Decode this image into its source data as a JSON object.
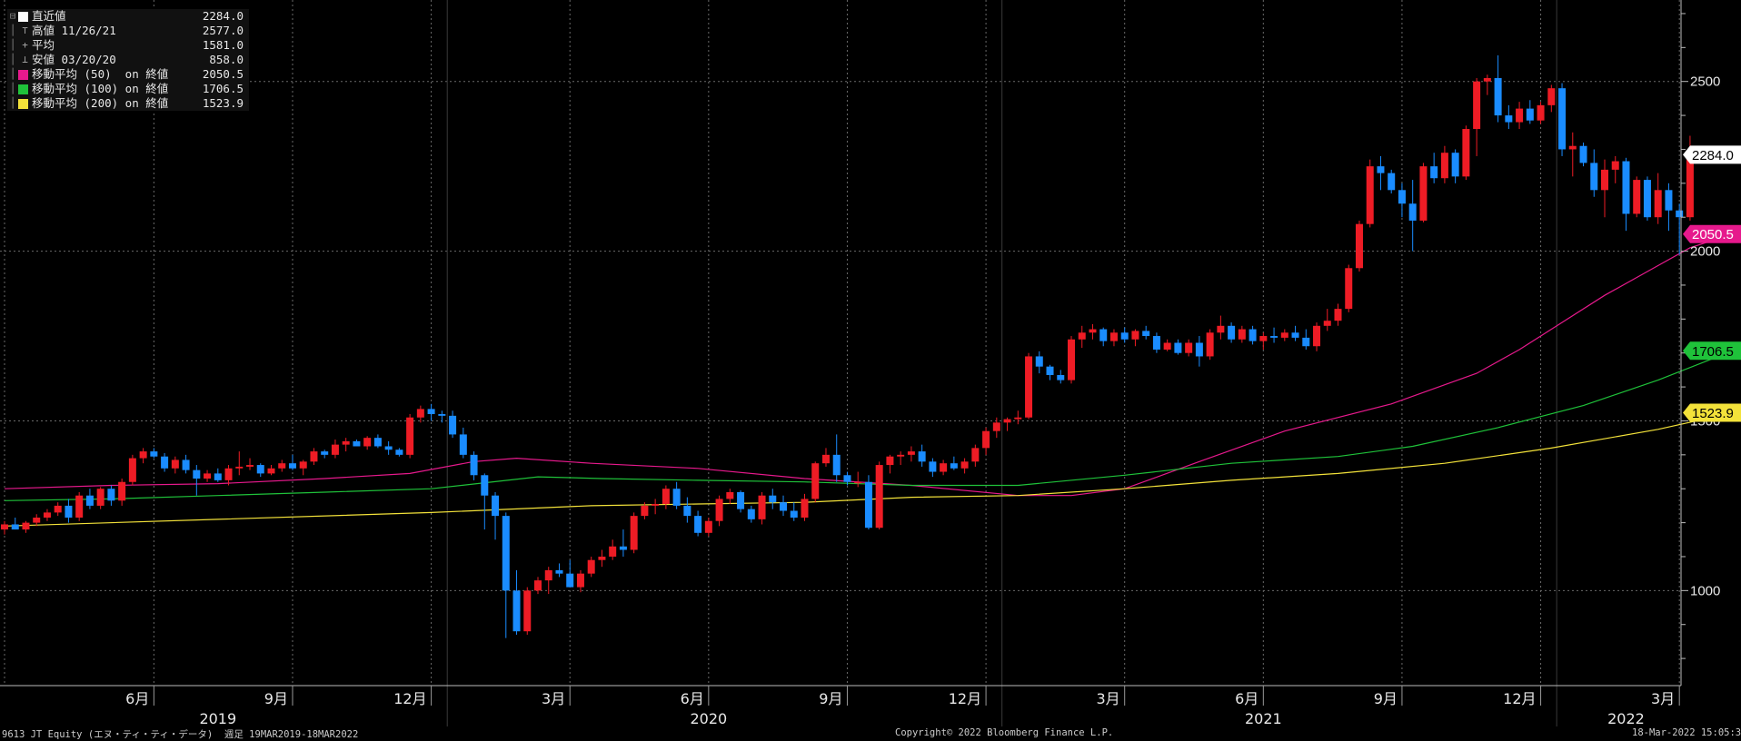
{
  "legend": [
    {
      "label": "直近値",
      "value": "2284.0",
      "color": "#ffffff",
      "icon": "square-swatch"
    },
    {
      "label": "高値 11/26/21",
      "value": "2577.0",
      "icon": "high-marker"
    },
    {
      "label": "平均",
      "value": "1581.0",
      "icon": "average-marker"
    },
    {
      "label": "安値 03/20/20",
      "value": "858.0",
      "icon": "low-marker"
    },
    {
      "label": "移動平均 (50)  on 終値",
      "value": "2050.5",
      "color": "#e6198c",
      "icon": "square-swatch"
    },
    {
      "label": "移動平均 (100) on 終値",
      "value": "1706.5",
      "color": "#1fc23a",
      "icon": "square-swatch"
    },
    {
      "label": "移動平均 (200) on 終値",
      "value": "1523.9",
      "color": "#f3e23a",
      "icon": "square-swatch"
    }
  ],
  "footer": {
    "left": "9613 JT Equity (エヌ・ティ・ティ・データ)  週足 19MAR2019-18MAR2022",
    "center": "Copyright© 2022 Bloomberg Finance L.P.",
    "right": "18-Mar-2022 15:05:34"
  },
  "chart_data": {
    "type": "candlestick",
    "y_axis": {
      "range": [
        720,
        2740
      ],
      "ticks": [
        1000,
        1500,
        2000,
        2500
      ],
      "tick_labels": [
        "1000",
        "1500",
        "2000",
        "2500"
      ],
      "position": "right"
    },
    "x_axis": {
      "month_ticks": [
        {
          "label": "6月",
          "week": 14
        },
        {
          "label": "9月",
          "week": 27
        },
        {
          "label": "12月",
          "week": 40
        },
        {
          "label": "3月",
          "week": 53
        },
        {
          "label": "6月",
          "week": 66
        },
        {
          "label": "9月",
          "week": 79
        },
        {
          "label": "12月",
          "week": 92
        },
        {
          "label": "3月",
          "week": 105
        },
        {
          "label": "6月",
          "week": 118
        },
        {
          "label": "9月",
          "week": 131
        },
        {
          "label": "12月",
          "week": 144
        },
        {
          "label": "3月",
          "week": 157
        }
      ],
      "year_labels": [
        {
          "label": "2019",
          "week": 20
        },
        {
          "label": "2020",
          "week": 66
        },
        {
          "label": "2021",
          "week": 118
        },
        {
          "label": "2022",
          "week": 152
        }
      ],
      "year_dividers": [
        41.5,
        93.5,
        145.5
      ]
    },
    "grid": true,
    "candle_colors": {
      "up": "#ee1c25",
      "down": "#1a8cff"
    },
    "last_value_labels": [
      {
        "value": 2284.0,
        "text": "2284.0",
        "bg": "#ffffff",
        "fg": "#000000"
      },
      {
        "value": 2050.5,
        "text": "2050.5",
        "bg": "#e6198c",
        "fg": "#ffffff"
      },
      {
        "value": 1706.5,
        "text": "1706.5",
        "bg": "#1fc23a",
        "fg": "#000000"
      },
      {
        "value": 1523.9,
        "text": "1523.9",
        "bg": "#f3e23a",
        "fg": "#000000"
      }
    ],
    "candles": [
      [
        1180,
        1205,
        1165,
        1195
      ],
      [
        1195,
        1215,
        1180,
        1180
      ],
      [
        1180,
        1205,
        1170,
        1200
      ],
      [
        1200,
        1225,
        1190,
        1215
      ],
      [
        1215,
        1240,
        1205,
        1230
      ],
      [
        1230,
        1260,
        1220,
        1250
      ],
      [
        1250,
        1270,
        1200,
        1215
      ],
      [
        1215,
        1290,
        1205,
        1280
      ],
      [
        1280,
        1300,
        1240,
        1250
      ],
      [
        1250,
        1305,
        1240,
        1300
      ],
      [
        1300,
        1310,
        1250,
        1265
      ],
      [
        1265,
        1330,
        1250,
        1320
      ],
      [
        1320,
        1400,
        1310,
        1390
      ],
      [
        1390,
        1420,
        1375,
        1410
      ],
      [
        1410,
        1420,
        1390,
        1395
      ],
      [
        1395,
        1405,
        1350,
        1360
      ],
      [
        1360,
        1395,
        1345,
        1385
      ],
      [
        1385,
        1400,
        1345,
        1355
      ],
      [
        1355,
        1370,
        1280,
        1330
      ],
      [
        1330,
        1355,
        1320,
        1345
      ],
      [
        1345,
        1360,
        1320,
        1325
      ],
      [
        1325,
        1370,
        1310,
        1360
      ],
      [
        1360,
        1410,
        1340,
        1365
      ],
      [
        1365,
        1390,
        1355,
        1370
      ],
      [
        1370,
        1375,
        1335,
        1345
      ],
      [
        1345,
        1370,
        1340,
        1360
      ],
      [
        1360,
        1385,
        1350,
        1375
      ],
      [
        1375,
        1400,
        1355,
        1360
      ],
      [
        1360,
        1385,
        1340,
        1380
      ],
      [
        1380,
        1420,
        1370,
        1410
      ],
      [
        1410,
        1415,
        1390,
        1400
      ],
      [
        1400,
        1445,
        1390,
        1430
      ],
      [
        1430,
        1450,
        1410,
        1440
      ],
      [
        1440,
        1445,
        1425,
        1425
      ],
      [
        1425,
        1455,
        1415,
        1450
      ],
      [
        1450,
        1460,
        1420,
        1425
      ],
      [
        1425,
        1440,
        1400,
        1415
      ],
      [
        1415,
        1420,
        1395,
        1400
      ],
      [
        1400,
        1520,
        1390,
        1510
      ],
      [
        1510,
        1545,
        1495,
        1535
      ],
      [
        1535,
        1550,
        1500,
        1520
      ],
      [
        1520,
        1530,
        1495,
        1515
      ],
      [
        1515,
        1530,
        1450,
        1460
      ],
      [
        1460,
        1480,
        1390,
        1400
      ],
      [
        1400,
        1410,
        1325,
        1340
      ],
      [
        1340,
        1345,
        1180,
        1280
      ],
      [
        1280,
        1290,
        1150,
        1220
      ],
      [
        1220,
        1230,
        860,
        1000
      ],
      [
        1000,
        1060,
        870,
        880
      ],
      [
        880,
        1010,
        870,
        1000
      ],
      [
        1000,
        1040,
        990,
        1030
      ],
      [
        1030,
        1070,
        990,
        1060
      ],
      [
        1060,
        1080,
        1040,
        1050
      ],
      [
        1050,
        1090,
        1010,
        1010
      ],
      [
        1010,
        1060,
        995,
        1050
      ],
      [
        1050,
        1100,
        1040,
        1090
      ],
      [
        1090,
        1120,
        1070,
        1100
      ],
      [
        1100,
        1150,
        1090,
        1130
      ],
      [
        1130,
        1180,
        1100,
        1120
      ],
      [
        1120,
        1230,
        1110,
        1220
      ],
      [
        1220,
        1260,
        1210,
        1250
      ],
      [
        1250,
        1270,
        1225,
        1255
      ],
      [
        1255,
        1310,
        1240,
        1300
      ],
      [
        1300,
        1320,
        1240,
        1250
      ],
      [
        1250,
        1275,
        1200,
        1220
      ],
      [
        1220,
        1235,
        1160,
        1170
      ],
      [
        1170,
        1215,
        1160,
        1205
      ],
      [
        1205,
        1280,
        1190,
        1270
      ],
      [
        1270,
        1300,
        1255,
        1290
      ],
      [
        1290,
        1295,
        1230,
        1240
      ],
      [
        1240,
        1250,
        1200,
        1210
      ],
      [
        1210,
        1290,
        1195,
        1280
      ],
      [
        1280,
        1300,
        1240,
        1260
      ],
      [
        1260,
        1280,
        1220,
        1235
      ],
      [
        1235,
        1260,
        1205,
        1215
      ],
      [
        1215,
        1285,
        1205,
        1270
      ],
      [
        1270,
        1380,
        1260,
        1375
      ],
      [
        1375,
        1420,
        1365,
        1400
      ],
      [
        1400,
        1460,
        1320,
        1340
      ],
      [
        1340,
        1350,
        1310,
        1320
      ],
      [
        1320,
        1350,
        1305,
        1320
      ],
      [
        1320,
        1340,
        1180,
        1185
      ],
      [
        1185,
        1380,
        1180,
        1370
      ],
      [
        1370,
        1400,
        1345,
        1395
      ],
      [
        1395,
        1410,
        1370,
        1400
      ],
      [
        1400,
        1425,
        1380,
        1410
      ],
      [
        1410,
        1430,
        1365,
        1380
      ],
      [
        1380,
        1390,
        1335,
        1350
      ],
      [
        1350,
        1385,
        1340,
        1375
      ],
      [
        1375,
        1395,
        1355,
        1360
      ],
      [
        1360,
        1390,
        1345,
        1380
      ],
      [
        1380,
        1430,
        1365,
        1420
      ],
      [
        1420,
        1480,
        1400,
        1470
      ],
      [
        1470,
        1510,
        1450,
        1495
      ],
      [
        1495,
        1510,
        1470,
        1505
      ],
      [
        1505,
        1530,
        1490,
        1510
      ],
      [
        1510,
        1700,
        1505,
        1690
      ],
      [
        1690,
        1705,
        1640,
        1660
      ],
      [
        1660,
        1665,
        1620,
        1635
      ],
      [
        1635,
        1650,
        1610,
        1620
      ],
      [
        1620,
        1750,
        1610,
        1740
      ],
      [
        1740,
        1780,
        1715,
        1760
      ],
      [
        1760,
        1785,
        1740,
        1770
      ],
      [
        1770,
        1775,
        1720,
        1735
      ],
      [
        1735,
        1770,
        1720,
        1760
      ],
      [
        1760,
        1775,
        1730,
        1740
      ],
      [
        1740,
        1770,
        1720,
        1765
      ],
      [
        1765,
        1780,
        1740,
        1750
      ],
      [
        1750,
        1760,
        1700,
        1710
      ],
      [
        1710,
        1740,
        1705,
        1730
      ],
      [
        1730,
        1740,
        1695,
        1700
      ],
      [
        1700,
        1740,
        1690,
        1730
      ],
      [
        1730,
        1750,
        1660,
        1690
      ],
      [
        1690,
        1770,
        1680,
        1760
      ],
      [
        1760,
        1810,
        1740,
        1780
      ],
      [
        1780,
        1790,
        1730,
        1740
      ],
      [
        1740,
        1780,
        1730,
        1770
      ],
      [
        1770,
        1780,
        1725,
        1735
      ],
      [
        1735,
        1760,
        1710,
        1750
      ],
      [
        1750,
        1775,
        1730,
        1745
      ],
      [
        1745,
        1770,
        1735,
        1760
      ],
      [
        1760,
        1780,
        1735,
        1745
      ],
      [
        1745,
        1770,
        1710,
        1720
      ],
      [
        1720,
        1790,
        1705,
        1780
      ],
      [
        1780,
        1830,
        1765,
        1795
      ],
      [
        1795,
        1845,
        1780,
        1830
      ],
      [
        1830,
        1960,
        1820,
        1950
      ],
      [
        1950,
        2090,
        1940,
        2080
      ],
      [
        2080,
        2270,
        2070,
        2250
      ],
      [
        2250,
        2280,
        2180,
        2230
      ],
      [
        2230,
        2240,
        2170,
        2180
      ],
      [
        2180,
        2200,
        2100,
        2140
      ],
      [
        2140,
        2210,
        2000,
        2090
      ],
      [
        2090,
        2260,
        2085,
        2250
      ],
      [
        2250,
        2290,
        2200,
        2215
      ],
      [
        2215,
        2310,
        2200,
        2290
      ],
      [
        2290,
        2300,
        2200,
        2220
      ],
      [
        2220,
        2370,
        2210,
        2360
      ],
      [
        2360,
        2510,
        2280,
        2500
      ],
      [
        2500,
        2520,
        2460,
        2510
      ],
      [
        2510,
        2577,
        2380,
        2400
      ],
      [
        2400,
        2430,
        2360,
        2380
      ],
      [
        2380,
        2440,
        2360,
        2420
      ],
      [
        2420,
        2445,
        2375,
        2385
      ],
      [
        2385,
        2440,
        2375,
        2430
      ],
      [
        2430,
        2490,
        2410,
        2480
      ],
      [
        2480,
        2495,
        2280,
        2300
      ],
      [
        2300,
        2350,
        2220,
        2310
      ],
      [
        2310,
        2320,
        2250,
        2260
      ],
      [
        2260,
        2300,
        2160,
        2180
      ],
      [
        2180,
        2270,
        2100,
        2240
      ],
      [
        2240,
        2280,
        2200,
        2265
      ],
      [
        2265,
        2275,
        2060,
        2110
      ],
      [
        2110,
        2220,
        2100,
        2210
      ],
      [
        2210,
        2220,
        2090,
        2100
      ],
      [
        2100,
        2230,
        2080,
        2180
      ],
      [
        2180,
        2200,
        2060,
        2120
      ],
      [
        2120,
        2140,
        1990,
        2100
      ],
      [
        2100,
        2340,
        2090,
        2284
      ]
    ],
    "moving_averages": [
      {
        "name": "移動平均 (50) on 終値",
        "color": "#e6198c",
        "points": [
          [
            0,
            1300
          ],
          [
            10,
            1310
          ],
          [
            20,
            1315
          ],
          [
            30,
            1330
          ],
          [
            38,
            1345
          ],
          [
            44,
            1380
          ],
          [
            48,
            1390
          ],
          [
            55,
            1375
          ],
          [
            65,
            1360
          ],
          [
            75,
            1330
          ],
          [
            85,
            1310
          ],
          [
            95,
            1280
          ],
          [
            100,
            1280
          ],
          [
            105,
            1300
          ],
          [
            112,
            1380
          ],
          [
            120,
            1470
          ],
          [
            130,
            1550
          ],
          [
            138,
            1640
          ],
          [
            142,
            1710
          ],
          [
            146,
            1790
          ],
          [
            150,
            1870
          ],
          [
            154,
            1940
          ],
          [
            158,
            2010
          ],
          [
            162,
            2050.5
          ]
        ]
      },
      {
        "name": "移動平均 (100) on 終値",
        "color": "#1fc23a",
        "points": [
          [
            0,
            1265
          ],
          [
            10,
            1270
          ],
          [
            20,
            1280
          ],
          [
            30,
            1290
          ],
          [
            40,
            1300
          ],
          [
            50,
            1335
          ],
          [
            56,
            1330
          ],
          [
            65,
            1325
          ],
          [
            75,
            1320
          ],
          [
            85,
            1310
          ],
          [
            95,
            1310
          ],
          [
            105,
            1340
          ],
          [
            115,
            1375
          ],
          [
            125,
            1395
          ],
          [
            132,
            1425
          ],
          [
            140,
            1480
          ],
          [
            148,
            1545
          ],
          [
            155,
            1620
          ],
          [
            162,
            1706.5
          ]
        ]
      },
      {
        "name": "移動平均 (200) on 終値",
        "color": "#f3e23a",
        "points": [
          [
            0,
            1190
          ],
          [
            20,
            1210
          ],
          [
            40,
            1230
          ],
          [
            55,
            1250
          ],
          [
            65,
            1255
          ],
          [
            75,
            1260
          ],
          [
            85,
            1275
          ],
          [
            95,
            1280
          ],
          [
            105,
            1300
          ],
          [
            115,
            1325
          ],
          [
            125,
            1345
          ],
          [
            135,
            1375
          ],
          [
            145,
            1420
          ],
          [
            155,
            1475
          ],
          [
            162,
            1523.9
          ]
        ]
      }
    ]
  }
}
